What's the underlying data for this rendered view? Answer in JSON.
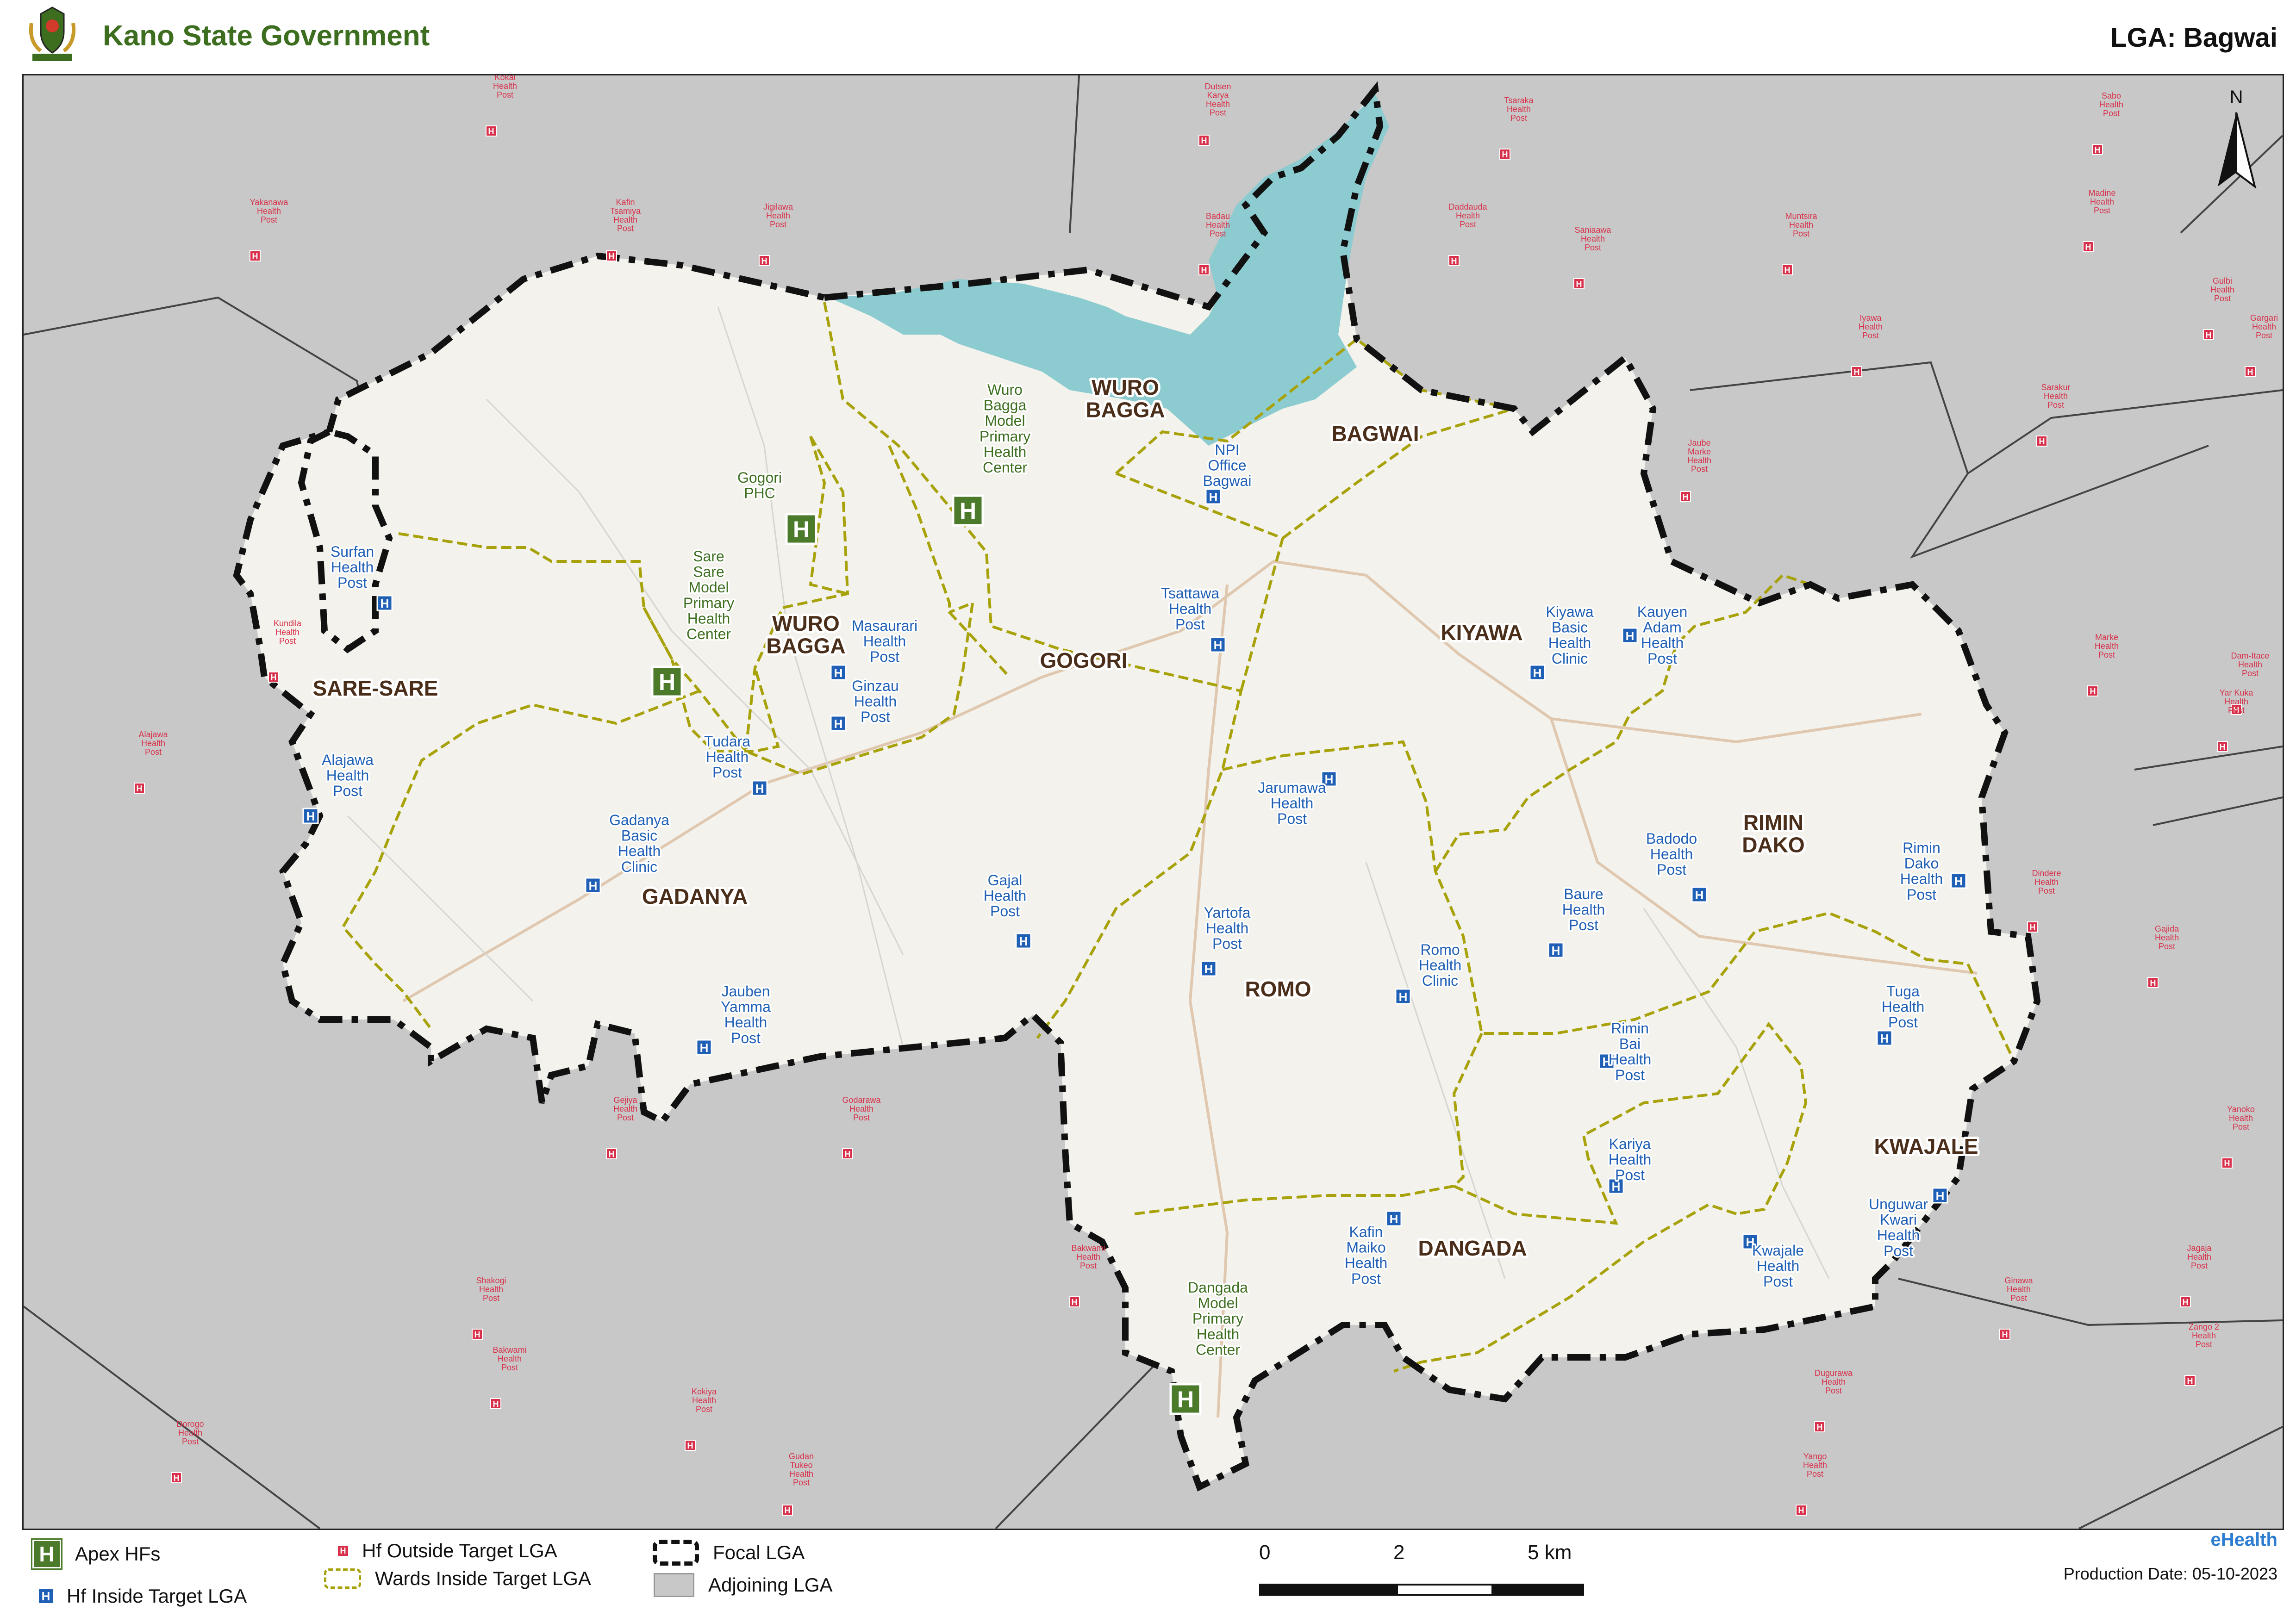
{
  "header": {
    "government_title": "Kano State Government",
    "lga_title": "LGA: Bagwai"
  },
  "north_arrow_label": "N",
  "colors": {
    "title_green": "#3d6e1f",
    "apex_green": "#4a7a2a",
    "inside_hf_blue": "#1f5fb5",
    "outside_hf_red": "#d8304a",
    "ward_boundary": "#a8a20a",
    "focal_boundary": "#111111",
    "adjoining_lga": "#c8c8c8",
    "focal_fill": "#f3f2ec",
    "water": "#8ccbd0"
  },
  "wards": [
    "WURO BAGGA",
    "BAGWAI",
    "SARE-SARE",
    "WURO BAGGA",
    "GOGORI",
    "KIYAWA",
    "GADANYA",
    "RIMIN DAKO",
    "ROMO",
    "KWAJALE",
    "DANGADA"
  ],
  "apex_facilities": [
    "Wuro Bagga Model Primary Health Center",
    "Gogori PHC",
    "Sare Sare Model Primary Health Center",
    "Dangada Model Primary Health Center"
  ],
  "inside_facilities": [
    "NPI Office Bagwai",
    "Surfan Health Post",
    "Masaurari Health Post",
    "Tsattawa Health Post",
    "Kiyawa Basic Health Clinic",
    "Kauyen Adam Health Post",
    "Ginzau Health Post",
    "Tudara Health Post",
    "Alajawa Health Post",
    "Gadanya Basic Health Clinic",
    "Jarumawa Health Post",
    "Badodo Health Post",
    "Rimin Dako Health Post",
    "Gajal Health Post",
    "Yartofa Health Post",
    "Baure Health Post",
    "Romo Health Clinic",
    "Jauben Yamma Health Post",
    "Tuga Health Post",
    "Rimin Bai Health Post",
    "Kariya Health Post",
    "Kafin Maiko Health Post",
    "Unguwar Kwari Health Post",
    "Kwajale Health Post"
  ],
  "outside_facilities": [
    "Kokai Health Post",
    "Dutsen Karya Health Post",
    "Tsaraka Health Post",
    "Sabo Health Post",
    "Yakanawa Health Post",
    "Kafin Tsamiya Health Post",
    "Jigilawa Health Post",
    "Badau Health Post",
    "Daddauda Health Post",
    "Saniaawa Health Post",
    "Muntsira Health Post",
    "Madine Health Post",
    "Gulbi Health Post",
    "Gargari Health Post",
    "Iyawa Health Post",
    "Sarakur Health Post",
    "Jaube Marke Health Post",
    "Kundila Health Post",
    "Marke Health Post",
    "Dam-Itace Health Post",
    "Yar Kuka Health Post",
    "Alajawa Health Post",
    "Dindere Health Post",
    "Gajida Health Post",
    "Gejiya Health Post",
    "Godarawa Health Post",
    "Yanoko Health Post",
    "Bakwami Health Post",
    "Jagaja Health Post",
    "Shakogi Health Post",
    "Ginawa Health Post",
    "Zango 2 Health Post",
    "Bakwami Health Post",
    "Kokiya Health Post",
    "Dugurawa Health Post",
    "Dorogo Health Post",
    "Gudan Tukeo Health Post",
    "Yango Health Post"
  ],
  "legend": {
    "apex": "Apex HFs",
    "inside": "Hf Inside Target LGA",
    "outside": "Hf Outside Target LGA",
    "wards": "Wards Inside Target LGA",
    "focal": "Focal LGA",
    "adjoining": "Adjoining LGA",
    "apex_glyph": "H",
    "hf_glyph": "H"
  },
  "scale_bar": {
    "labels": [
      "0",
      "2",
      "5 km"
    ]
  },
  "credit": {
    "logo_text": "eHealth",
    "production_date": "Production Date: 05-10-2023"
  }
}
